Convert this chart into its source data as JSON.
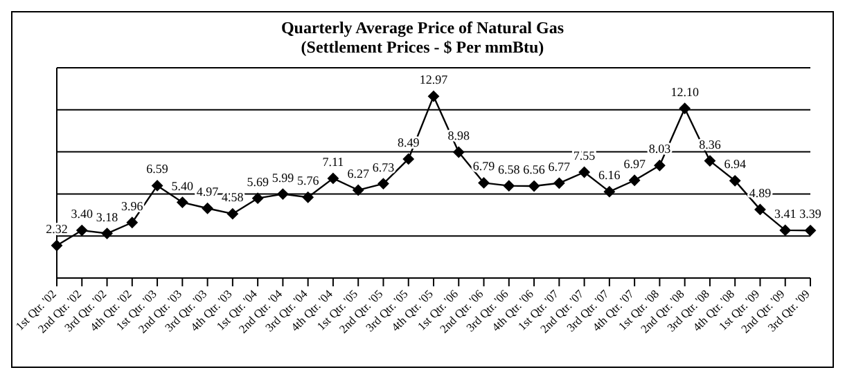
{
  "chart_data": {
    "type": "line",
    "title": "Quarterly Average Price  of Natural Gas",
    "subtitle": "(Settlement Prices  - $ Per mmBtu)",
    "categories": [
      "1st Qtr. '02",
      "2nd Qtr. '02",
      "3rd Qtr. '02",
      "4th Qtr. '02",
      "1st Qtr. '03",
      "2nd Qtr. '03",
      "3rd Qtr. '03",
      "4th Qtr. '03",
      "1st Qtr. '04",
      "2nd Qtr. '04",
      "3rd Qtr. '04",
      "4th Qtr. '04",
      "1st Qtr. '05",
      "2nd Qtr. '05",
      "3rd Qtr. '05",
      "4th Qtr. '05",
      "1st Qtr. '06",
      "2nd Qtr. '06",
      "3rd Qtr. '06",
      "4th Qtr. '06",
      "1st Qtr. '07",
      "2nd Qtr. '07",
      "3rd Qtr. '07",
      "4th Qtr. '07",
      "1st Qtr. '08",
      "2nd Qtr. '08",
      "3rd Qtr. '08",
      "4th Qtr. '08",
      "1st Qtr. '09",
      "2nd Qtr. '09",
      "3rd Qtr. '09"
    ],
    "series": [
      {
        "color": "#000000",
        "values": [
          2.32,
          3.4,
          3.18,
          3.96,
          6.59,
          5.4,
          4.97,
          4.58,
          5.69,
          5.99,
          5.76,
          7.11,
          6.27,
          6.73,
          8.49,
          12.97,
          8.98,
          6.79,
          6.58,
          6.56,
          6.77,
          7.55,
          6.16,
          6.97,
          8.03,
          12.1,
          8.36,
          6.94,
          4.89,
          3.41,
          3.39
        ],
        "value_labels": [
          "2.32",
          "3.40",
          "3.18",
          "3.96",
          "6.59",
          "5.40",
          "4.97",
          "4.58",
          "5.69",
          "5.99",
          "5.76",
          "7.11",
          "6.27",
          "6.73",
          "8.49",
          "12.97",
          "8.98",
          "6.79",
          "6.58",
          "6.56",
          "6.77",
          "7.55",
          "6.16",
          "6.97",
          "8.03",
          "12.10",
          "8.36",
          "6.94",
          "4.89",
          "3.41",
          "3.39"
        ]
      }
    ],
    "tick_labels": "x",
    "grid": "y",
    "marker": "diamond",
    "line_style": "solid",
    "legend": false
  }
}
